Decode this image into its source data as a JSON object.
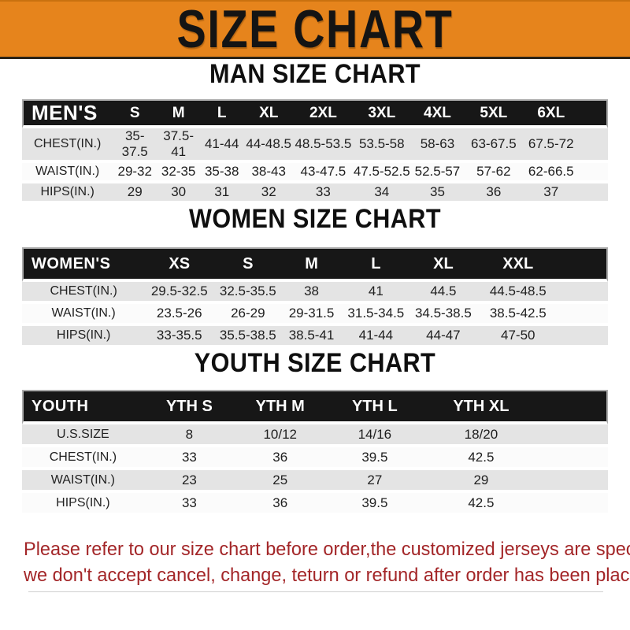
{
  "banner": {
    "title": "SIZE CHART"
  },
  "colors": {
    "banner_bg": "#e6841c",
    "header_bar_bg": "#171717",
    "row_gray": "#e4e4e4",
    "row_white": "#fbfbfb",
    "footer_text_red": "#a32628"
  },
  "sections": [
    {
      "heading": "MAN SIZE CHART",
      "header": {
        "label": "MEN'S",
        "sizes": [
          "S",
          "M",
          "L",
          "XL",
          "2XL",
          "3XL",
          "4XL",
          "5XL",
          "6XL"
        ]
      },
      "rows": [
        {
          "label": "CHEST(IN.)",
          "values": [
            "35-37.5",
            "37.5-41",
            "41-44",
            "44-48.5",
            "48.5-53.5",
            "53.5-58",
            "58-63",
            "63-67.5",
            "67.5-72"
          ]
        },
        {
          "label": "WAIST(IN.)",
          "values": [
            "29-32",
            "32-35",
            "35-38",
            "38-43",
            "43-47.5",
            "47.5-52.5",
            "52.5-57",
            "57-62",
            "62-66.5"
          ]
        },
        {
          "label": "HIPS(IN.)",
          "values": [
            "29",
            "30",
            "31",
            "32",
            "33",
            "34",
            "35",
            "36",
            "37"
          ]
        }
      ]
    },
    {
      "heading": "WOMEN SIZE CHART",
      "header": {
        "label": "WOMEN'S",
        "sizes": [
          "XS",
          "S",
          "M",
          "L",
          "XL",
          "XXL"
        ]
      },
      "rows": [
        {
          "label": "CHEST(IN.)",
          "values": [
            "29.5-32.5",
            "32.5-35.5",
            "38",
            "41",
            "44.5",
            "44.5-48.5"
          ]
        },
        {
          "label": "WAIST(IN.)",
          "values": [
            "23.5-26",
            "26-29",
            "29-31.5",
            "31.5-34.5",
            "34.5-38.5",
            "38.5-42.5"
          ]
        },
        {
          "label": "HIPS(IN.)",
          "values": [
            "33-35.5",
            "35.5-38.5",
            "38.5-41",
            "41-44",
            "44-47",
            "47-50"
          ]
        }
      ]
    },
    {
      "heading": "YOUTH SIZE CHART",
      "header": {
        "label": "YOUTH",
        "sizes": [
          "YTH S",
          "YTH M",
          "YTH L",
          "YTH XL"
        ]
      },
      "rows": [
        {
          "label": "U.S.SIZE",
          "values": [
            "8",
            "10/12",
            "14/16",
            "18/20"
          ]
        },
        {
          "label": "CHEST(IN.)",
          "values": [
            "33",
            "36",
            "39.5",
            "42.5"
          ]
        },
        {
          "label": "WAIST(IN.)",
          "values": [
            "23",
            "25",
            "27",
            "29"
          ]
        },
        {
          "label": "HIPS(IN.)",
          "values": [
            "33",
            "36",
            "39.5",
            "42.5"
          ]
        }
      ]
    }
  ],
  "footer": {
    "line1": "Please refer to our size chart before order,the customized jerseys are special products,",
    "line2": "we don't accept cancel, change, teturn or refund after order has been placed!"
  }
}
